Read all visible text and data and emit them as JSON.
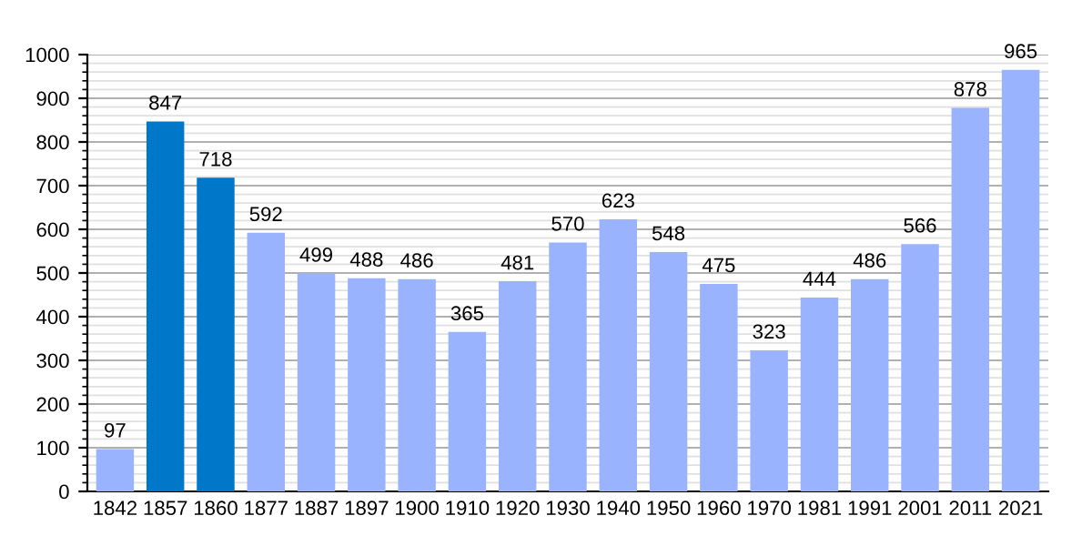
{
  "chart_data": {
    "type": "bar",
    "categories": [
      "1842",
      "1857",
      "1860",
      "1877",
      "1887",
      "1897",
      "1900",
      "1910",
      "1920",
      "1930",
      "1940",
      "1950",
      "1960",
      "1970",
      "1981",
      "1991",
      "2001",
      "2011",
      "2021"
    ],
    "values": [
      97,
      847,
      718,
      592,
      499,
      488,
      486,
      365,
      481,
      570,
      623,
      548,
      475,
      323,
      444,
      486,
      566,
      878,
      965
    ],
    "colors": [
      "#99b3ff",
      "#0077c8",
      "#0077c8",
      "#99b3ff",
      "#99b3ff",
      "#99b3ff",
      "#99b3ff",
      "#99b3ff",
      "#99b3ff",
      "#99b3ff",
      "#99b3ff",
      "#99b3ff",
      "#99b3ff",
      "#99b3ff",
      "#99b3ff",
      "#99b3ff",
      "#99b3ff",
      "#99b3ff",
      "#99b3ff"
    ],
    "ylim": [
      0,
      1000
    ],
    "yticks": [
      0,
      100,
      200,
      300,
      400,
      500,
      600,
      700,
      800,
      900,
      1000
    ],
    "grid": "y",
    "data_labels": true
  }
}
